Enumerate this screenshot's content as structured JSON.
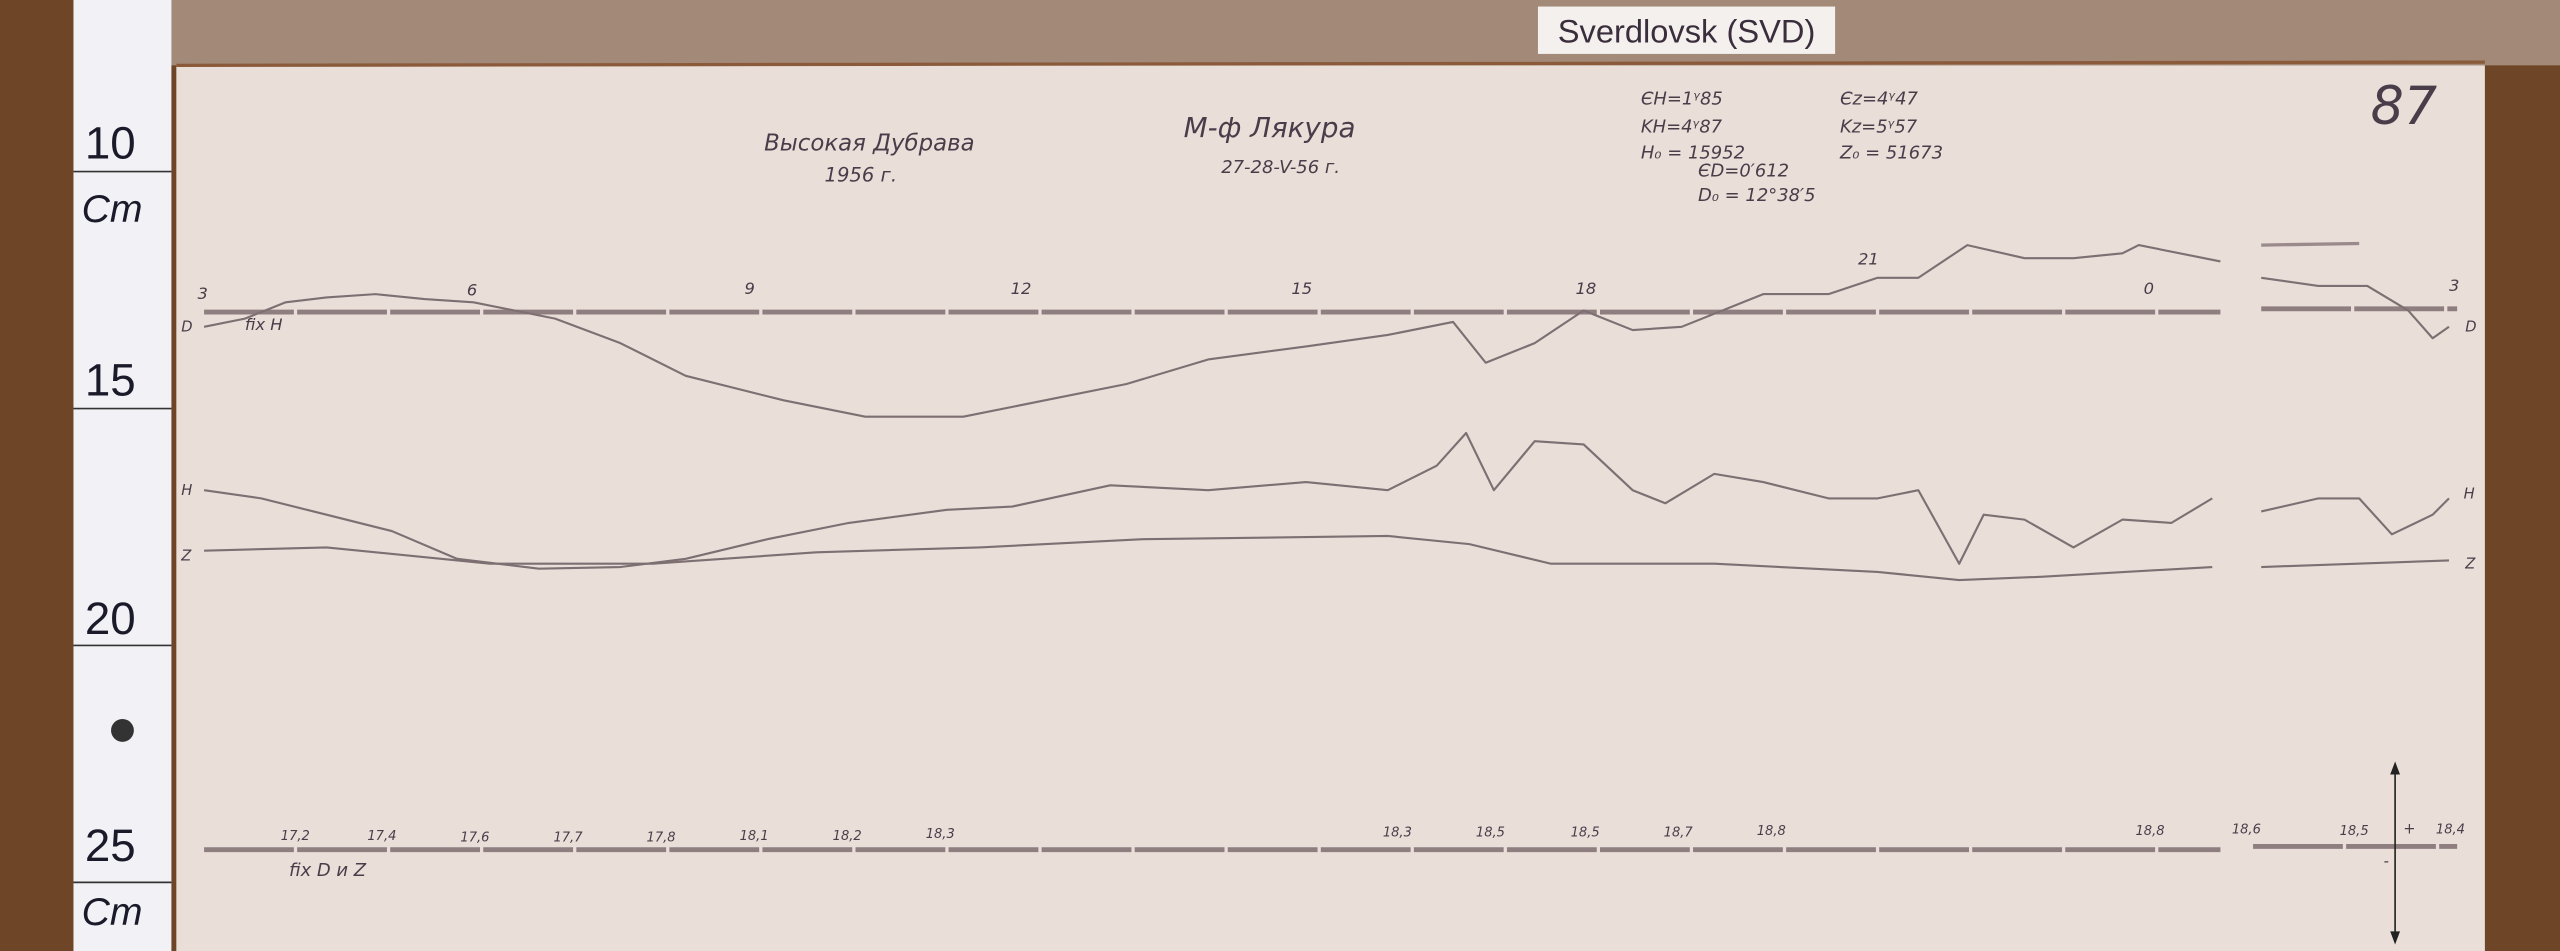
{
  "label_card": "Sverdlovsk (SVD)",
  "ruler": {
    "marks": [
      "10",
      "15",
      "20",
      "25"
    ],
    "unit": "Cm"
  },
  "sheet_number": "87",
  "station": {
    "name": "Высокая Дубрава",
    "year": "1956 г."
  },
  "magnetometer": {
    "name": "М-ф Лякура",
    "dates": "27-28-V-56 г."
  },
  "params": {
    "eh": "ЄH=1ᵞ85",
    "ez": "Єz=4ᵞ47",
    "kh": "KH=4ᵞ87",
    "kz": "Kz=5ᵞ57",
    "h0": "H₀ = 15952",
    "z0": "Z₀ = 51673",
    "ed": "ЄD=0′612",
    "d0": "D₀ = 12°38′5"
  },
  "hours": [
    "3",
    "6",
    "9",
    "12",
    "15",
    "18",
    "21",
    "0",
    "3"
  ],
  "curve_labels": {
    "d": "D",
    "h": "H",
    "z": "Z"
  },
  "fix_top": "fix H",
  "fix_bottom": "fix D и Z",
  "bottom_values": [
    "17,2",
    "17,4",
    "17,6",
    "17,7",
    "17,8",
    "18,1",
    "18,2",
    "18,3",
    "18,3",
    "18,5",
    "18,5",
    "18,7",
    "18,8",
    "18,8",
    "18,6",
    "18,5",
    "18,4"
  ],
  "scale_signs": {
    "plus": "+",
    "minus": "-"
  }
}
